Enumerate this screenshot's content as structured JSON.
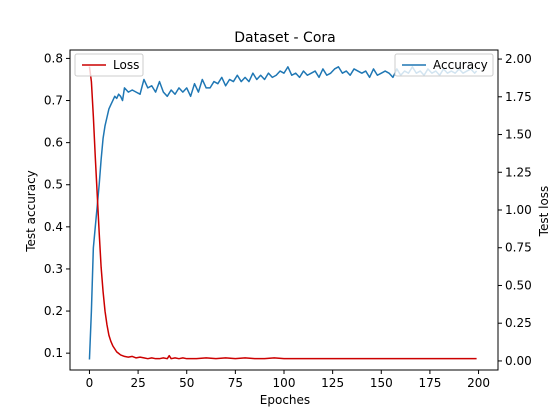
{
  "chart_data": {
    "type": "line",
    "title": "Dataset - Cora",
    "xlabel": "Epoches",
    "ylabel_left": "Test accuracy",
    "ylabel_right": "Test loss",
    "xlim": [
      -10,
      210
    ],
    "ylim_left": [
      0.06,
      0.82
    ],
    "ylim_right": [
      -0.06,
      2.06
    ],
    "x_ticks": [
      0,
      25,
      50,
      75,
      100,
      125,
      150,
      175,
      200
    ],
    "y_ticks_left": [
      0.1,
      0.2,
      0.3,
      0.4,
      0.5,
      0.6,
      0.7,
      0.8
    ],
    "y_ticks_right": [
      0.0,
      0.25,
      0.5,
      0.75,
      1.0,
      1.25,
      1.5,
      1.75,
      2.0
    ],
    "grid": false,
    "series": [
      {
        "name": "Accuracy",
        "axis": "left",
        "color": "#1f77b4",
        "legend": "top-right",
        "points": [
          [
            0,
            0.085
          ],
          [
            1,
            0.2
          ],
          [
            2,
            0.35
          ],
          [
            3,
            0.4
          ],
          [
            4,
            0.45
          ],
          [
            5,
            0.5
          ],
          [
            6,
            0.56
          ],
          [
            7,
            0.61
          ],
          [
            8,
            0.64
          ],
          [
            9,
            0.66
          ],
          [
            10,
            0.68
          ],
          [
            11,
            0.69
          ],
          [
            12,
            0.7
          ],
          [
            13,
            0.71
          ],
          [
            14,
            0.705
          ],
          [
            15,
            0.715
          ],
          [
            16,
            0.71
          ],
          [
            17,
            0.7
          ],
          [
            18,
            0.73
          ],
          [
            19,
            0.725
          ],
          [
            20,
            0.72
          ],
          [
            22,
            0.725
          ],
          [
            24,
            0.72
          ],
          [
            26,
            0.715
          ],
          [
            28,
            0.75
          ],
          [
            30,
            0.73
          ],
          [
            32,
            0.735
          ],
          [
            34,
            0.72
          ],
          [
            36,
            0.745
          ],
          [
            38,
            0.72
          ],
          [
            40,
            0.71
          ],
          [
            42,
            0.725
          ],
          [
            44,
            0.715
          ],
          [
            46,
            0.73
          ],
          [
            48,
            0.72
          ],
          [
            50,
            0.73
          ],
          [
            52,
            0.71
          ],
          [
            54,
            0.74
          ],
          [
            56,
            0.72
          ],
          [
            58,
            0.75
          ],
          [
            60,
            0.73
          ],
          [
            62,
            0.73
          ],
          [
            64,
            0.745
          ],
          [
            66,
            0.74
          ],
          [
            68,
            0.755
          ],
          [
            70,
            0.735
          ],
          [
            72,
            0.75
          ],
          [
            74,
            0.745
          ],
          [
            76,
            0.76
          ],
          [
            78,
            0.745
          ],
          [
            80,
            0.755
          ],
          [
            82,
            0.745
          ],
          [
            84,
            0.765
          ],
          [
            86,
            0.75
          ],
          [
            88,
            0.76
          ],
          [
            90,
            0.75
          ],
          [
            92,
            0.765
          ],
          [
            94,
            0.755
          ],
          [
            96,
            0.76
          ],
          [
            98,
            0.77
          ],
          [
            100,
            0.765
          ],
          [
            102,
            0.78
          ],
          [
            104,
            0.76
          ],
          [
            106,
            0.765
          ],
          [
            108,
            0.755
          ],
          [
            110,
            0.77
          ],
          [
            112,
            0.76
          ],
          [
            114,
            0.765
          ],
          [
            116,
            0.77
          ],
          [
            118,
            0.755
          ],
          [
            120,
            0.775
          ],
          [
            122,
            0.76
          ],
          [
            124,
            0.765
          ],
          [
            126,
            0.775
          ],
          [
            128,
            0.78
          ],
          [
            130,
            0.765
          ],
          [
            132,
            0.77
          ],
          [
            134,
            0.76
          ],
          [
            136,
            0.775
          ],
          [
            138,
            0.77
          ],
          [
            140,
            0.765
          ],
          [
            142,
            0.77
          ],
          [
            144,
            0.755
          ],
          [
            146,
            0.775
          ],
          [
            148,
            0.76
          ],
          [
            150,
            0.765
          ],
          [
            152,
            0.77
          ],
          [
            154,
            0.765
          ],
          [
            156,
            0.755
          ],
          [
            158,
            0.775
          ],
          [
            160,
            0.76
          ],
          [
            162,
            0.77
          ],
          [
            164,
            0.765
          ],
          [
            166,
            0.78
          ],
          [
            168,
            0.765
          ],
          [
            170,
            0.77
          ],
          [
            172,
            0.76
          ],
          [
            174,
            0.775
          ],
          [
            176,
            0.765
          ],
          [
            178,
            0.77
          ],
          [
            180,
            0.76
          ],
          [
            182,
            0.775
          ],
          [
            184,
            0.765
          ],
          [
            186,
            0.77
          ],
          [
            188,
            0.765
          ],
          [
            190,
            0.775
          ],
          [
            192,
            0.765
          ],
          [
            194,
            0.77
          ],
          [
            196,
            0.775
          ],
          [
            198,
            0.765
          ],
          [
            199,
            0.77
          ]
        ]
      },
      {
        "name": "Loss",
        "axis": "right",
        "color": "#cc0000",
        "legend": "top-left",
        "points": [
          [
            0,
            1.95
          ],
          [
            1,
            1.85
          ],
          [
            2,
            1.62
          ],
          [
            3,
            1.35
          ],
          [
            4,
            1.1
          ],
          [
            5,
            0.85
          ],
          [
            6,
            0.62
          ],
          [
            7,
            0.46
          ],
          [
            8,
            0.33
          ],
          [
            9,
            0.24
          ],
          [
            10,
            0.17
          ],
          [
            11,
            0.13
          ],
          [
            12,
            0.1
          ],
          [
            13,
            0.08
          ],
          [
            14,
            0.06
          ],
          [
            15,
            0.05
          ],
          [
            16,
            0.04
          ],
          [
            18,
            0.03
          ],
          [
            20,
            0.025
          ],
          [
            22,
            0.03
          ],
          [
            24,
            0.02
          ],
          [
            26,
            0.025
          ],
          [
            28,
            0.02
          ],
          [
            30,
            0.015
          ],
          [
            32,
            0.02
          ],
          [
            34,
            0.015
          ],
          [
            36,
            0.015
          ],
          [
            38,
            0.02
          ],
          [
            40,
            0.015
          ],
          [
            41,
            0.035
          ],
          [
            42,
            0.015
          ],
          [
            44,
            0.02
          ],
          [
            46,
            0.015
          ],
          [
            48,
            0.02
          ],
          [
            50,
            0.015
          ],
          [
            55,
            0.015
          ],
          [
            60,
            0.02
          ],
          [
            65,
            0.015
          ],
          [
            70,
            0.02
          ],
          [
            75,
            0.015
          ],
          [
            80,
            0.02
          ],
          [
            85,
            0.015
          ],
          [
            90,
            0.015
          ],
          [
            95,
            0.02
          ],
          [
            100,
            0.015
          ],
          [
            110,
            0.015
          ],
          [
            120,
            0.015
          ],
          [
            130,
            0.015
          ],
          [
            140,
            0.015
          ],
          [
            150,
            0.015
          ],
          [
            160,
            0.015
          ],
          [
            170,
            0.015
          ],
          [
            180,
            0.015
          ],
          [
            190,
            0.015
          ],
          [
            199,
            0.015
          ]
        ]
      }
    ]
  }
}
